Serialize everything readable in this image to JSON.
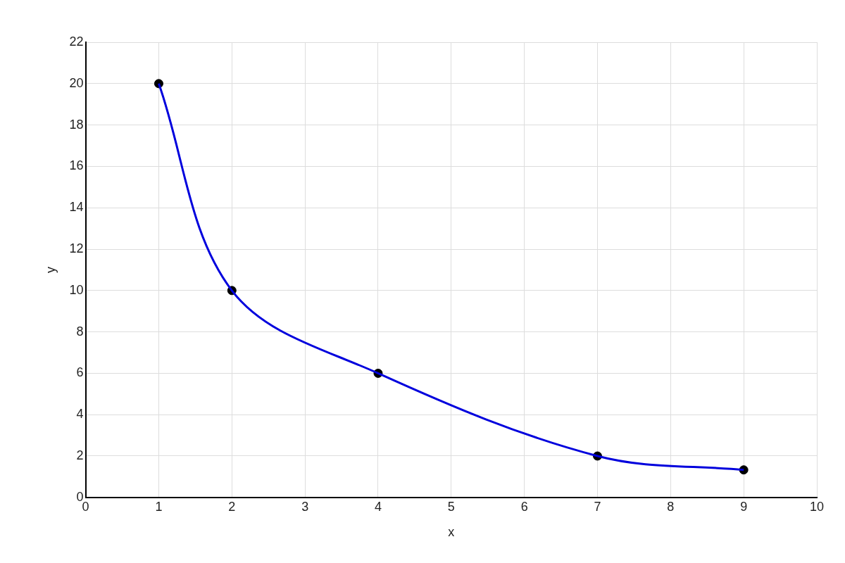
{
  "chart_data": {
    "type": "line",
    "xlabel": "x",
    "ylabel": "y",
    "xlim": [
      0,
      10
    ],
    "ylim": [
      0,
      22
    ],
    "xticks": [
      0,
      1,
      2,
      3,
      4,
      5,
      6,
      7,
      8,
      9,
      10
    ],
    "yticks": [
      0,
      2,
      4,
      6,
      8,
      10,
      12,
      14,
      16,
      18,
      20,
      22
    ],
    "grid": true,
    "legend": false,
    "series": [
      {
        "type": "line",
        "color": "#0000dd",
        "marker": "none",
        "line_style": "solid",
        "x": [
          1,
          2,
          4,
          7,
          9
        ],
        "values": [
          20,
          10,
          6,
          2,
          1.33
        ]
      },
      {
        "type": "scatter",
        "color": "#000000",
        "marker": "circle",
        "x": [
          1,
          2,
          4,
          7,
          9
        ],
        "values": [
          20,
          10,
          6,
          2,
          1.33
        ]
      }
    ]
  }
}
